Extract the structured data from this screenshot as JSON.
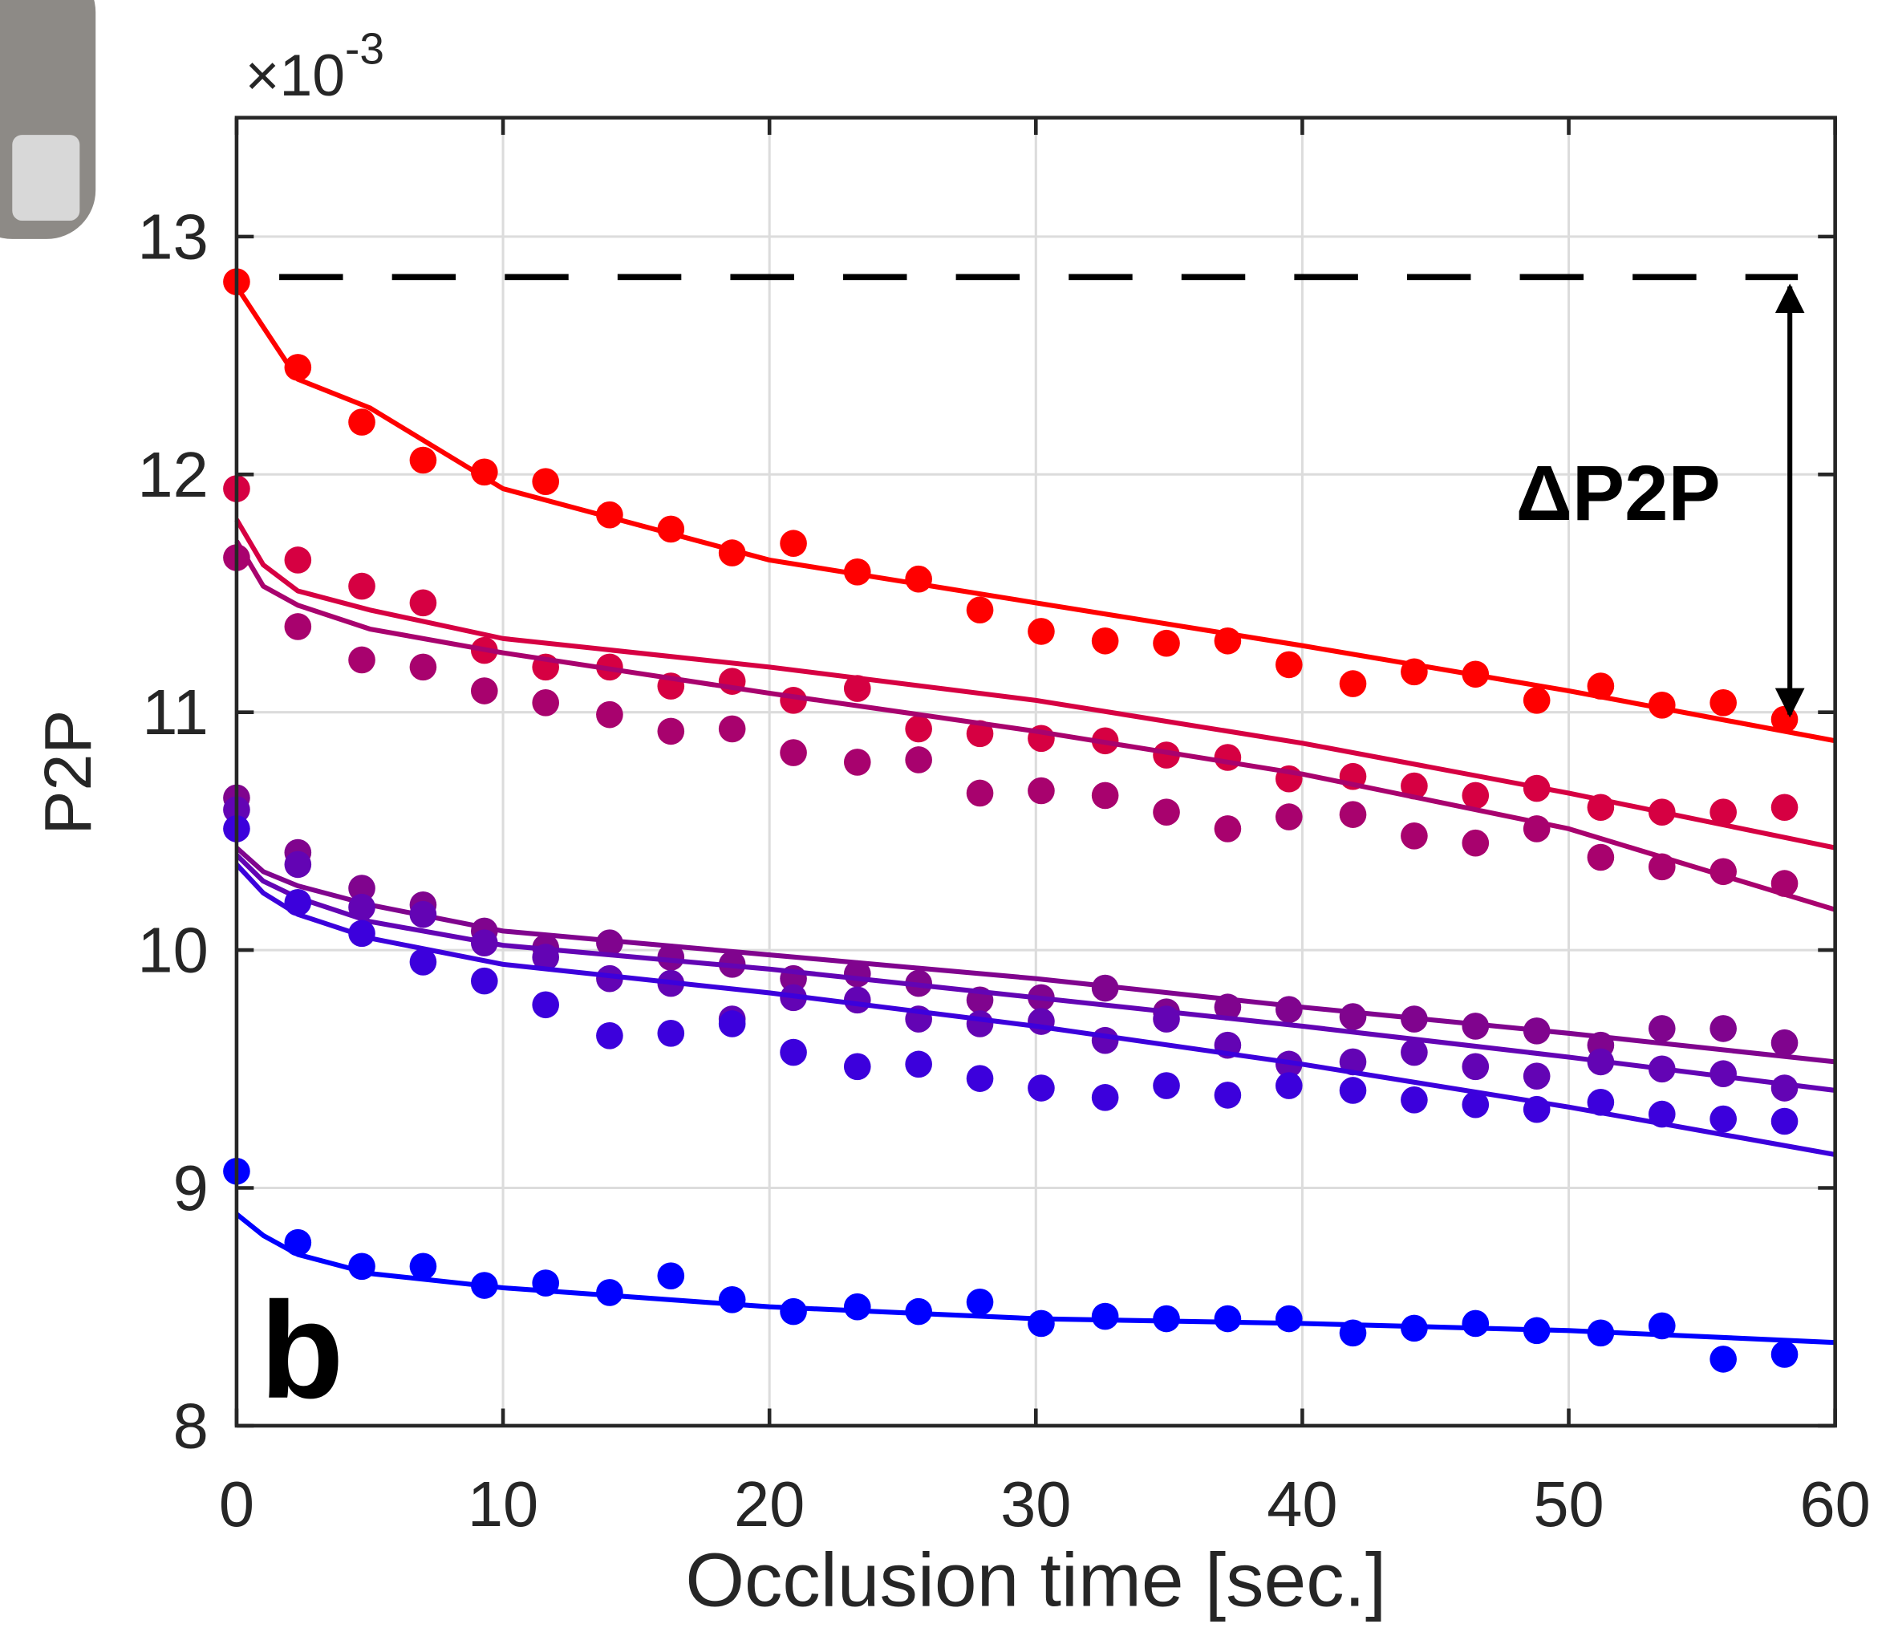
{
  "chart_data": {
    "type": "scatter",
    "panel_label": "b",
    "xlabel": "Occlusion time [sec.]",
    "ylabel": "P2P",
    "y_multiplier": "×10",
    "y_multiplier_exponent": "-3",
    "xlim": [
      0,
      60
    ],
    "ylim": [
      8,
      13.5
    ],
    "xticks": [
      0,
      10,
      20,
      30,
      40,
      50,
      60
    ],
    "yticks": [
      8,
      9,
      10,
      11,
      12,
      13
    ],
    "grid": true,
    "x": [
      0,
      2.3,
      4.7,
      7.0,
      9.3,
      11.6,
      14.0,
      16.3,
      18.6,
      20.9,
      23.3,
      25.6,
      27.9,
      30.2,
      32.6,
      34.9,
      37.2,
      39.5,
      41.9,
      44.2,
      46.5,
      48.8,
      51.2,
      53.5,
      55.8,
      58.1
    ],
    "fit_x": [
      0,
      1,
      2.3,
      5,
      10,
      20,
      30,
      40,
      50,
      60
    ],
    "series": [
      {
        "color": "#ff0000",
        "values": [
          12.81,
          12.45,
          12.22,
          12.06,
          12.01,
          11.97,
          11.83,
          11.77,
          11.67,
          11.71,
          11.59,
          11.56,
          11.43,
          11.34,
          11.3,
          11.29,
          11.3,
          11.2,
          11.12,
          11.17,
          11.16,
          11.05,
          11.11,
          11.03,
          11.04,
          10.97
        ],
        "fit": [
          12.79,
          12.62,
          12.4,
          12.28,
          11.94,
          11.64,
          11.46,
          11.28,
          11.09,
          10.88
        ]
      },
      {
        "color": "#d60042",
        "values": [
          11.94,
          11.64,
          11.53,
          11.46,
          11.26,
          11.19,
          11.19,
          11.11,
          11.13,
          11.05,
          11.1,
          10.93,
          10.91,
          10.89,
          10.88,
          10.82,
          10.81,
          10.72,
          10.73,
          10.69,
          10.65,
          10.68,
          10.6,
          10.58,
          10.58,
          10.6
        ],
        "fit": [
          11.81,
          11.62,
          11.51,
          11.43,
          11.31,
          11.19,
          11.05,
          10.87,
          10.66,
          10.43
        ]
      },
      {
        "color": "#a8026e",
        "values": [
          11.65,
          11.36,
          11.22,
          11.19,
          11.09,
          11.04,
          10.99,
          10.92,
          10.93,
          10.83,
          10.79,
          10.8,
          10.66,
          10.67,
          10.65,
          10.58,
          10.51,
          10.56,
          10.57,
          10.48,
          10.45,
          10.51,
          10.39,
          10.35,
          10.33,
          10.28
        ],
        "fit": [
          11.72,
          11.53,
          11.45,
          11.35,
          11.25,
          11.08,
          10.92,
          10.74,
          10.51,
          10.17
        ]
      },
      {
        "color": "#80048e",
        "values": [
          10.64,
          10.41,
          10.26,
          10.19,
          10.08,
          10.01,
          10.03,
          9.97,
          9.94,
          9.88,
          9.9,
          9.86,
          9.79,
          9.8,
          9.84,
          9.74,
          9.76,
          9.75,
          9.72,
          9.71,
          9.68,
          9.66,
          9.6,
          9.67,
          9.67,
          9.61
        ],
        "fit": [
          10.43,
          10.33,
          10.27,
          10.19,
          10.08,
          9.98,
          9.88,
          9.76,
          9.65,
          9.53
        ]
      },
      {
        "color": "#6304b4",
        "values": [
          10.59,
          10.36,
          10.18,
          10.15,
          10.03,
          9.97,
          9.88,
          9.86,
          9.71,
          9.8,
          9.79,
          9.71,
          9.69,
          9.7,
          9.62,
          9.71,
          9.6,
          9.52,
          9.53,
          9.57,
          9.51,
          9.47,
          9.53,
          9.5,
          9.48,
          9.42
        ],
        "fit": [
          10.4,
          10.29,
          10.22,
          10.12,
          10.02,
          9.92,
          9.8,
          9.68,
          9.55,
          9.41
        ]
      },
      {
        "color": "#3c00dc",
        "values": [
          10.51,
          10.2,
          10.07,
          9.95,
          9.87,
          9.77,
          9.64,
          9.65,
          9.69,
          9.57,
          9.51,
          9.52,
          9.46,
          9.42,
          9.38,
          9.43,
          9.39,
          9.43,
          9.41,
          9.37,
          9.35,
          9.33,
          9.36,
          9.31,
          9.29,
          9.28
        ],
        "fit": [
          10.36,
          10.24,
          10.15,
          10.05,
          9.94,
          9.82,
          9.68,
          9.52,
          9.34,
          9.14
        ]
      },
      {
        "color": "#0000ff",
        "values": [
          9.07,
          8.77,
          8.67,
          8.67,
          8.59,
          8.6,
          8.56,
          8.63,
          8.53,
          8.48,
          8.5,
          8.48,
          8.52,
          8.43,
          8.46,
          8.45,
          8.45,
          8.45,
          8.39,
          8.41,
          8.43,
          8.4,
          8.39,
          8.42,
          8.28,
          8.3
        ],
        "fit": [
          8.89,
          8.8,
          8.72,
          8.64,
          8.58,
          8.5,
          8.45,
          8.43,
          8.4,
          8.35
        ]
      }
    ],
    "reference_line": {
      "y": 12.83,
      "x": [
        1.6,
        58.6
      ]
    },
    "arrow": {
      "x": 58.3,
      "y": [
        12.79,
        10.99
      ]
    },
    "annotation": "ΔP2P"
  }
}
